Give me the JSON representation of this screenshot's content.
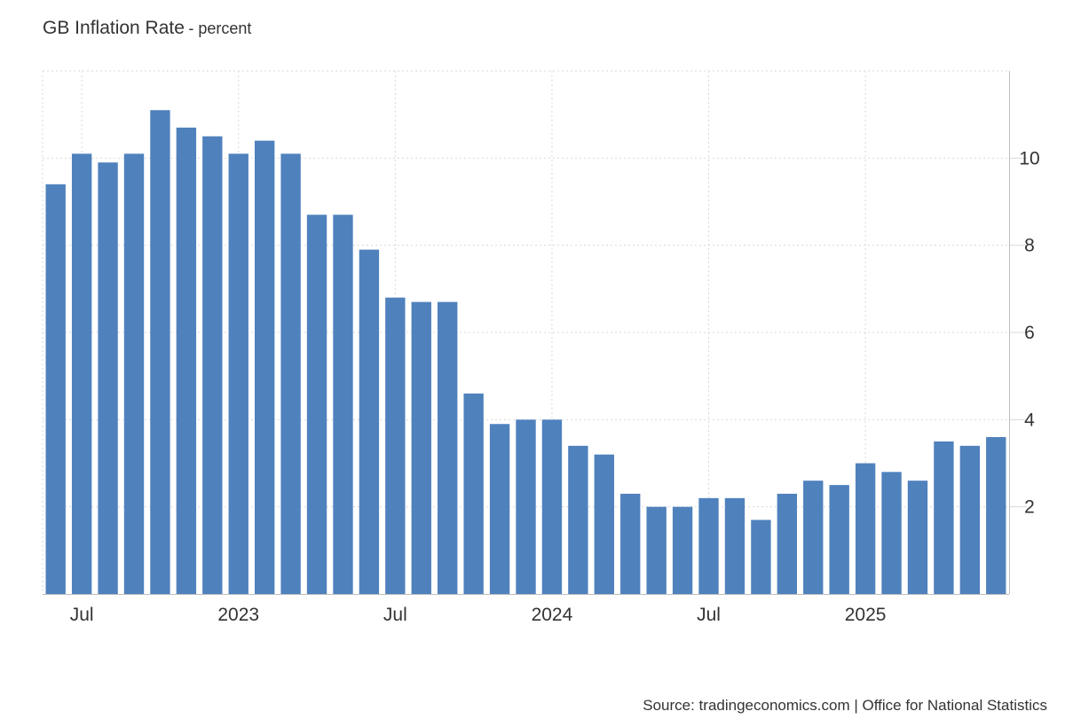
{
  "header": {
    "title": "GB Inflation Rate",
    "unit": "- percent"
  },
  "source": "Source: tradingeconomics.com | Office for National Statistics",
  "colors": {
    "bar": "#4f81bd",
    "grid": "#d9d9d9",
    "axis_text": "#333333"
  },
  "chart_data": {
    "type": "bar",
    "title": "GB Inflation Rate",
    "subtitle": "- percent",
    "xlabel": "",
    "ylabel": "",
    "y_axis_side": "right",
    "ylim": [
      0,
      12
    ],
    "yticks": [
      2,
      4,
      6,
      8,
      10
    ],
    "grid": true,
    "legend": "none",
    "x_tick_labels": [
      {
        "label": "Jul",
        "category": "2022-07"
      },
      {
        "label": "2023",
        "category": "2023-01"
      },
      {
        "label": "Jul",
        "category": "2023-07"
      },
      {
        "label": "2024",
        "category": "2024-01"
      },
      {
        "label": "Jul",
        "category": "2024-07"
      },
      {
        "label": "2025",
        "category": "2025-01"
      }
    ],
    "categories": [
      "2022-06",
      "2022-07",
      "2022-08",
      "2022-09",
      "2022-10",
      "2022-11",
      "2022-12",
      "2023-01",
      "2023-02",
      "2023-03",
      "2023-04",
      "2023-05",
      "2023-06",
      "2023-07",
      "2023-08",
      "2023-09",
      "2023-10",
      "2023-11",
      "2023-12",
      "2024-01",
      "2024-02",
      "2024-03",
      "2024-04",
      "2024-05",
      "2024-06",
      "2024-07",
      "2024-08",
      "2024-09",
      "2024-10",
      "2024-11",
      "2024-12",
      "2025-01",
      "2025-02",
      "2025-03",
      "2025-04",
      "2025-05",
      "2025-06"
    ],
    "values": [
      9.4,
      10.1,
      9.9,
      10.1,
      11.1,
      10.7,
      10.5,
      10.1,
      10.4,
      10.1,
      8.7,
      8.7,
      7.9,
      6.8,
      6.7,
      6.7,
      4.6,
      3.9,
      4.0,
      4.0,
      3.4,
      3.2,
      2.3,
      2.0,
      2.0,
      2.2,
      2.2,
      1.7,
      2.3,
      2.6,
      2.5,
      3.0,
      2.8,
      2.6,
      3.5,
      3.4,
      3.6
    ]
  }
}
